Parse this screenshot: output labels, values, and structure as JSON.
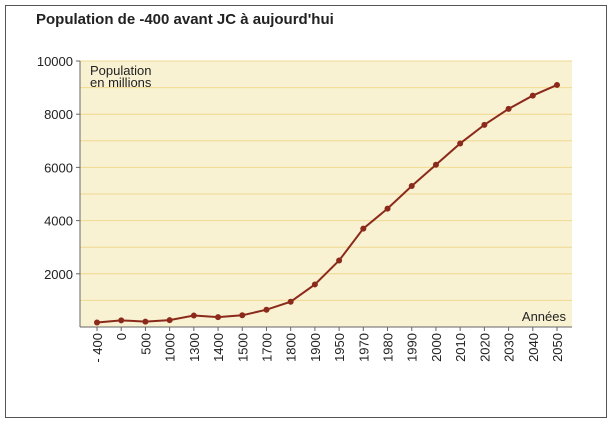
{
  "chart_data": {
    "type": "line",
    "title": "Population de -400 avant JC à aujourd'hui",
    "ylabel_lines": [
      "Population",
      "en millions"
    ],
    "xlabel": "Années",
    "categories": [
      "- 400",
      "0",
      "500",
      "1000",
      "1300",
      "1400",
      "1500",
      "1700",
      "1800",
      "1900",
      "1950",
      "1970",
      "1980",
      "1990",
      "2000",
      "2010",
      "2020",
      "2030",
      "2040",
      "2050"
    ],
    "values": [
      170,
      250,
      200,
      260,
      430,
      370,
      440,
      650,
      950,
      1600,
      2500,
      3700,
      4450,
      5300,
      6100,
      6900,
      7600,
      8200,
      8700,
      9100
    ],
    "color": "#8b2a1a",
    "ylim": [
      0,
      10000
    ],
    "yticks": [
      2000,
      4000,
      6000,
      8000,
      10000
    ],
    "minor_yticks": [
      1000,
      3000,
      5000,
      7000,
      9000
    ],
    "grid": true
  }
}
